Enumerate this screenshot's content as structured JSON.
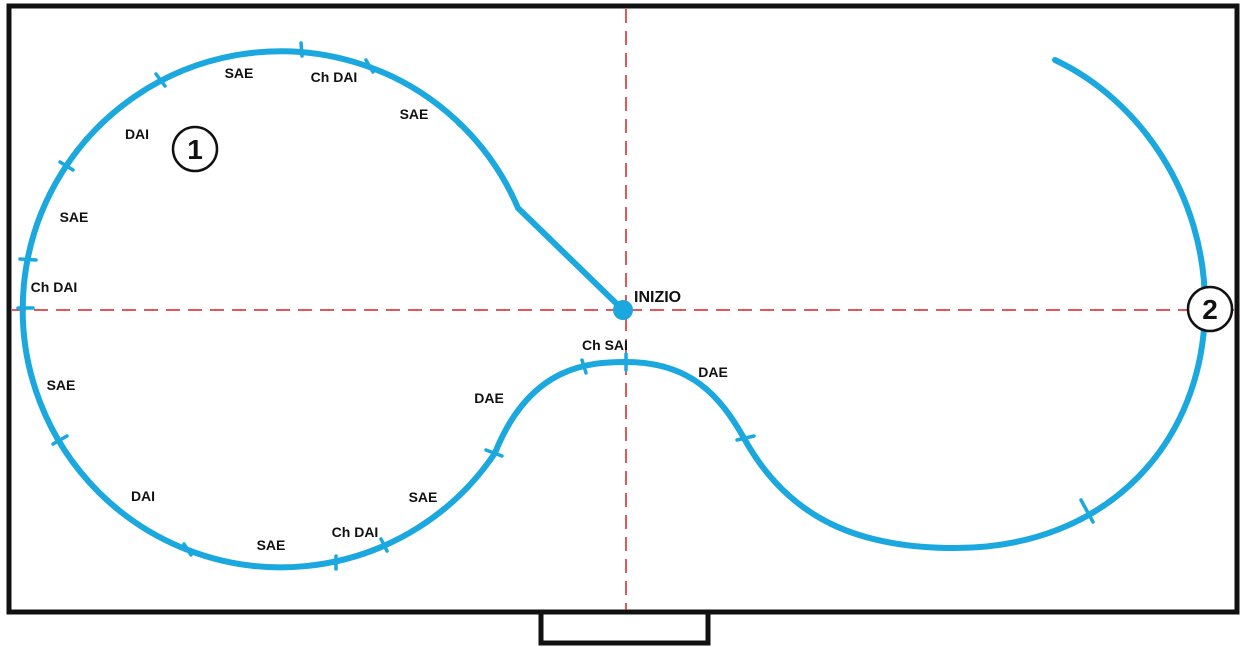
{
  "colors": {
    "track": "#1ba8df",
    "axis": "#d82020",
    "border": "#111111"
  },
  "start_label": "INIZIO",
  "markers": {
    "one": "1",
    "two": "2"
  },
  "segment_labels": {
    "l1": "SAE",
    "l2": "Ch DAI",
    "l3": "SAE",
    "l4": "DAI",
    "l5": "SAE",
    "l6": "Ch DAI",
    "l7": "SAE",
    "l8": "DAI",
    "l9": "SAE",
    "l10": "Ch DAI",
    "l11": "SAE",
    "l12": "DAE",
    "l13": "Ch SAI",
    "l14": "DAE"
  }
}
